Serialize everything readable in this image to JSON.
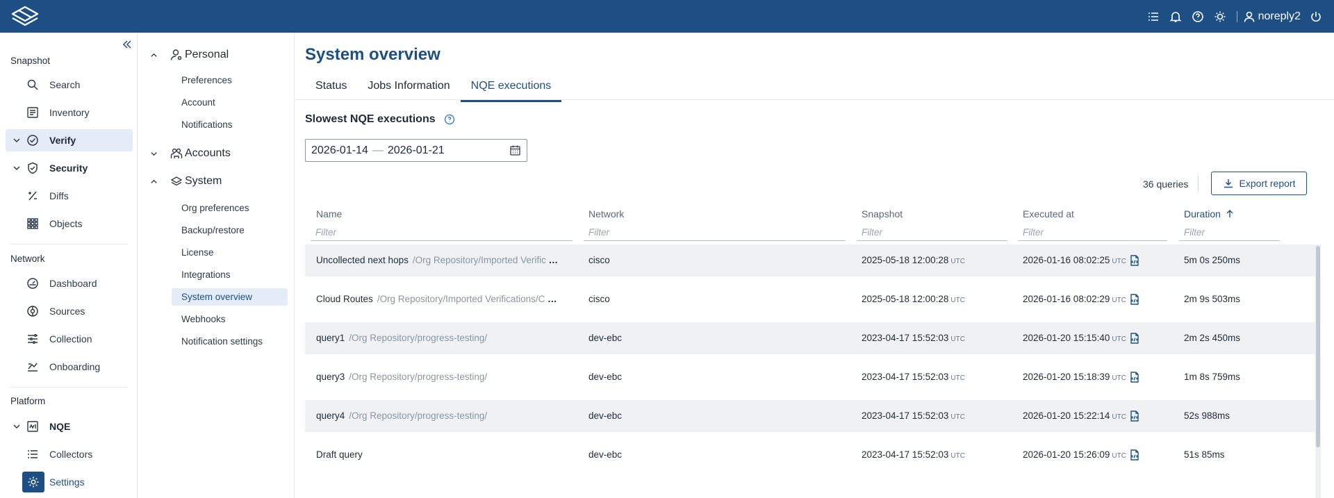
{
  "user": {
    "name": "noreply2"
  },
  "leftnav": {
    "sections": [
      {
        "title": "Snapshot",
        "items": [
          {
            "label": "Search",
            "icon": "search-icon"
          },
          {
            "label": "Inventory",
            "icon": "inventory-icon"
          },
          {
            "label": "Verify",
            "icon": "check-circle-icon",
            "expandable": true,
            "active": true
          },
          {
            "label": "Security",
            "icon": "shield-icon",
            "expandable": true
          },
          {
            "label": "Diffs",
            "icon": "diff-icon"
          },
          {
            "label": "Objects",
            "icon": "grid-icon"
          }
        ]
      },
      {
        "title": "Network",
        "items": [
          {
            "label": "Dashboard",
            "icon": "dashboard-icon"
          },
          {
            "label": "Sources",
            "icon": "sources-icon"
          },
          {
            "label": "Collection",
            "icon": "collection-icon"
          },
          {
            "label": "Onboarding",
            "icon": "onboarding-icon"
          }
        ]
      },
      {
        "title": "Platform",
        "items": [
          {
            "label": "NQE",
            "icon": "nqe-icon",
            "expandable": true
          },
          {
            "label": "Collectors",
            "icon": "list-icon"
          },
          {
            "label": "Settings",
            "icon": "gear-icon",
            "active": true
          }
        ]
      }
    ]
  },
  "subnav": {
    "groups": [
      {
        "label": "Personal",
        "icon": "person-icon",
        "expanded": true,
        "items": [
          "Preferences",
          "Account",
          "Notifications"
        ]
      },
      {
        "label": "Accounts",
        "icon": "accounts-icon",
        "expanded": false,
        "items": []
      },
      {
        "label": "System",
        "icon": "system-icon",
        "expanded": true,
        "items": [
          "Org preferences",
          "Backup/restore",
          "License",
          "Integrations",
          "System overview",
          "Webhooks",
          "Notification settings"
        ]
      }
    ],
    "active_item": "System overview"
  },
  "page": {
    "title": "System overview",
    "tabs": [
      "Status",
      "Jobs Information",
      "NQE executions"
    ],
    "active_tab": "NQE executions"
  },
  "nqe": {
    "section_title": "Slowest NQE executions",
    "date_from": "2026-01-14",
    "date_to": "2026-01-21",
    "date_separator": "—",
    "query_count": "36 queries",
    "export_label": "Export report",
    "columns": {
      "name": "Name",
      "network": "Network",
      "snapshot": "Snapshot",
      "executed_at": "Executed at",
      "duration": "Duration"
    },
    "filter_placeholder": "Filter",
    "utc": "UTC",
    "rows": [
      {
        "name": "Uncollected next hops",
        "path": "/Org Repository/Imported Verific",
        "truncated": true,
        "network": "cisco",
        "snapshot": "2025-05-18 12:00:28",
        "executed_at": "2026-01-16 08:02:25",
        "duration": "5m 0s 250ms"
      },
      {
        "name": "Cloud Routes",
        "path": "/Org Repository/Imported Verifications/C",
        "truncated": true,
        "network": "cisco",
        "snapshot": "2025-05-18 12:00:28",
        "executed_at": "2026-01-16 08:02:29",
        "duration": "2m 9s 503ms"
      },
      {
        "name": "query1",
        "path": "/Org Repository/progress-testing/",
        "truncated": false,
        "network": "dev-ebc",
        "snapshot": "2023-04-17 15:52:03",
        "executed_at": "2026-01-20 15:15:40",
        "duration": "2m 2s 450ms"
      },
      {
        "name": "query3",
        "path": "/Org Repository/progress-testing/",
        "truncated": false,
        "network": "dev-ebc",
        "snapshot": "2023-04-17 15:52:03",
        "executed_at": "2026-01-20 15:18:39",
        "duration": "1m 8s 759ms"
      },
      {
        "name": "query4",
        "path": "/Org Repository/progress-testing/",
        "truncated": false,
        "network": "dev-ebc",
        "snapshot": "2023-04-17 15:52:03",
        "executed_at": "2026-01-20 15:22:14",
        "duration": "52s 988ms"
      },
      {
        "name": "Draft query",
        "path": "",
        "truncated": false,
        "network": "dev-ebc",
        "snapshot": "2023-04-17 15:52:03",
        "executed_at": "2026-01-20 15:26:09",
        "duration": "51s 85ms"
      }
    ]
  },
  "colors": {
    "brand": "#1d4f85",
    "active_bg": "#e4edf7",
    "row_alt": "#f0f1f3"
  }
}
